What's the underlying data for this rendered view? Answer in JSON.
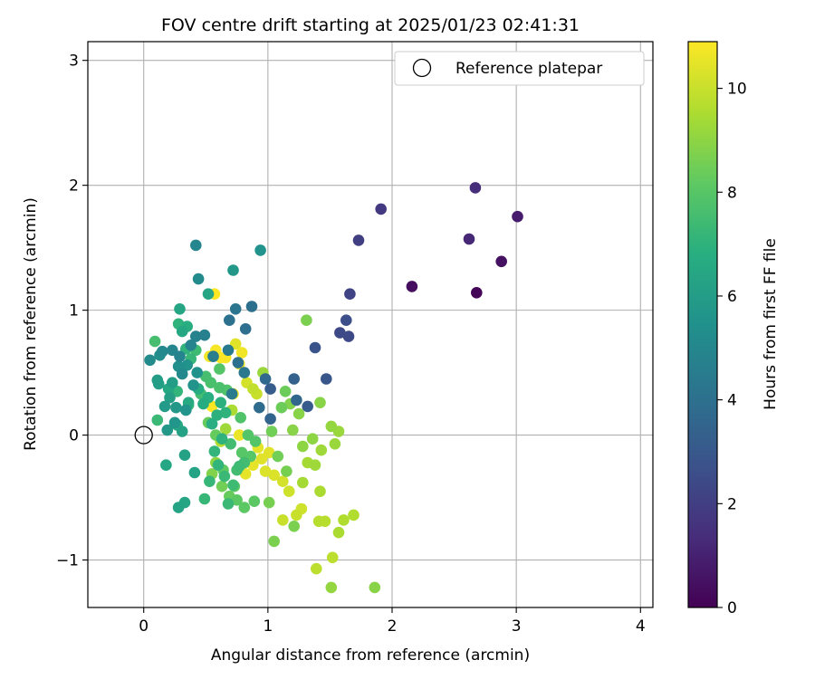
{
  "chart_data": {
    "type": "scatter",
    "title": "FOV centre drift starting at 2025/01/23 02:41:31",
    "xlabel": "Angular distance from reference (arcmin)",
    "ylabel": "Rotation from reference (arcmin)",
    "xlim": [
      -0.45,
      4.1
    ],
    "ylim": [
      -1.38,
      3.15
    ],
    "xticks": [
      0,
      1,
      2,
      3,
      4
    ],
    "xtick_labels": [
      "0",
      "1",
      "2",
      "3",
      "4"
    ],
    "yticks": [
      -1,
      0,
      1,
      2,
      3
    ],
    "ytick_labels": [
      "−1",
      "0",
      "1",
      "2",
      "3"
    ],
    "grid": true,
    "legend": {
      "position": "top-right",
      "label": "Reference platepar"
    },
    "reference_point": {
      "x": 0,
      "y": 0
    },
    "colorbar": {
      "label": "Hours from first FF file",
      "range": [
        0,
        10.9
      ],
      "ticks": [
        0,
        2,
        4,
        6,
        8,
        10
      ],
      "tick_labels": [
        "0",
        "2",
        "4",
        "6",
        "8",
        "10"
      ],
      "colormap": "viridis"
    },
    "points": [
      [
        2.68,
        1.14,
        0.1
      ],
      [
        2.16,
        1.19,
        0.4
      ],
      [
        2.88,
        1.39,
        0.5
      ],
      [
        3.01,
        1.75,
        0.8
      ],
      [
        2.62,
        1.57,
        1.2
      ],
      [
        2.67,
        1.98,
        1.4
      ],
      [
        1.91,
        1.81,
        1.8
      ],
      [
        1.73,
        1.56,
        2.0
      ],
      [
        1.66,
        1.13,
        2.2
      ],
      [
        1.58,
        0.82,
        2.4
      ],
      [
        1.65,
        0.79,
        2.4
      ],
      [
        1.63,
        0.92,
        2.6
      ],
      [
        1.38,
        0.7,
        2.8
      ],
      [
        1.47,
        0.45,
        2.9
      ],
      [
        1.32,
        0.23,
        3.1
      ],
      [
        1.02,
        0.37,
        3.2
      ],
      [
        1.21,
        0.45,
        3.4
      ],
      [
        1.23,
        0.28,
        3.6
      ],
      [
        1.02,
        0.13,
        3.5
      ],
      [
        0.98,
        0.45,
        3.7
      ],
      [
        0.93,
        0.22,
        3.8
      ],
      [
        0.82,
        0.85,
        3.9
      ],
      [
        0.87,
        1.03,
        4.0
      ],
      [
        0.69,
        0.92,
        4.1
      ],
      [
        0.76,
        0.58,
        4.0
      ],
      [
        0.74,
        1.01,
        4.2
      ],
      [
        0.81,
        0.5,
        4.3
      ],
      [
        0.68,
        0.68,
        4.4
      ],
      [
        0.71,
        0.33,
        4.5
      ],
      [
        0.56,
        0.63,
        4.6
      ],
      [
        0.49,
        0.8,
        4.7
      ],
      [
        0.42,
        0.79,
        4.8
      ],
      [
        0.38,
        0.72,
        4.9
      ],
      [
        0.29,
        0.63,
        4.9
      ],
      [
        0.23,
        0.68,
        5.0
      ],
      [
        0.31,
        0.49,
        5.1
      ],
      [
        0.15,
        0.67,
        5.1
      ],
      [
        0.05,
        0.6,
        5.2
      ],
      [
        0.13,
        0.64,
        5.3
      ],
      [
        0.28,
        0.55,
        5.4
      ],
      [
        0.35,
        0.56,
        5.5
      ],
      [
        0.43,
        0.5,
        5.5
      ],
      [
        0.4,
        0.4,
        5.6
      ],
      [
        0.34,
        0.2,
        5.6
      ],
      [
        0.25,
        0.1,
        5.7
      ],
      [
        0.26,
        0.22,
        5.8
      ],
      [
        0.19,
        0.04,
        5.8
      ],
      [
        0.17,
        0.23,
        5.9
      ],
      [
        0.23,
        0.42,
        6.0
      ],
      [
        0.11,
        0.44,
        6.0
      ],
      [
        0.12,
        0.41,
        6.1
      ],
      [
        0.21,
        0.3,
        6.1
      ],
      [
        0.31,
        0.03,
        6.2
      ],
      [
        0.33,
        -0.16,
        6.2
      ],
      [
        0.41,
        -0.3,
        6.3
      ],
      [
        0.28,
        -0.58,
        6.3
      ],
      [
        0.33,
        -0.54,
        6.4
      ],
      [
        0.18,
        -0.24,
        6.5
      ],
      [
        0.2,
        0.37,
        6.5
      ],
      [
        0.27,
        0.08,
        6.6
      ],
      [
        0.36,
        0.26,
        6.6
      ],
      [
        0.44,
        0.37,
        6.7
      ],
      [
        0.48,
        0.25,
        6.7
      ],
      [
        0.52,
        0.3,
        6.8
      ],
      [
        0.55,
        0.09,
        6.8
      ],
      [
        0.59,
        0.16,
        6.9
      ],
      [
        0.62,
        0.26,
        6.9
      ],
      [
        0.66,
        0.18,
        7.0
      ],
      [
        0.63,
        -0.03,
        7.0
      ],
      [
        0.57,
        -0.13,
        7.1
      ],
      [
        0.6,
        -0.24,
        7.1
      ],
      [
        0.53,
        -0.37,
        7.2
      ],
      [
        0.49,
        -0.51,
        7.2
      ],
      [
        0.65,
        -0.33,
        7.3
      ],
      [
        0.68,
        -0.55,
        7.3
      ],
      [
        0.72,
        -0.4,
        7.4
      ],
      [
        0.77,
        -0.25,
        7.4
      ],
      [
        0.81,
        -0.22,
        7.5
      ],
      [
        0.75,
        -0.28,
        7.5
      ],
      [
        0.7,
        -0.07,
        7.5
      ],
      [
        0.42,
        1.52,
        5.0
      ],
      [
        0.44,
        1.25,
        5.2
      ],
      [
        0.72,
        1.32,
        5.8
      ],
      [
        0.94,
        1.48,
        5.5
      ],
      [
        0.52,
        1.13,
        6.4
      ],
      [
        0.29,
        1.01,
        6.4
      ],
      [
        0.31,
        0.83,
        6.5
      ],
      [
        0.35,
        0.87,
        6.8
      ],
      [
        0.28,
        0.89,
        7.0
      ],
      [
        0.34,
        0.69,
        7.0
      ],
      [
        0.38,
        0.61,
        7.2
      ],
      [
        0.42,
        0.68,
        7.4
      ],
      [
        0.09,
        0.75,
        7.6
      ],
      [
        0.11,
        0.12,
        7.3
      ],
      [
        0.27,
        0.35,
        7.1
      ],
      [
        0.36,
        0.24,
        7.3
      ],
      [
        0.46,
        0.33,
        7.5
      ],
      [
        0.5,
        0.47,
        7.6
      ],
      [
        0.54,
        0.42,
        7.7
      ],
      [
        0.61,
        0.38,
        7.7
      ],
      [
        0.67,
        0.36,
        7.8
      ],
      [
        0.78,
        0.14,
        7.8
      ],
      [
        0.84,
        0.0,
        7.9
      ],
      [
        0.9,
        -0.05,
        7.9
      ],
      [
        0.86,
        -0.17,
        8.0
      ],
      [
        0.79,
        -0.14,
        8.0
      ],
      [
        0.81,
        -0.58,
        8.1
      ],
      [
        0.89,
        -0.53,
        8.1
      ],
      [
        0.73,
        -0.41,
        8.2
      ],
      [
        0.64,
        -0.28,
        8.2
      ],
      [
        0.58,
        0.0,
        8.3
      ],
      [
        0.52,
        0.1,
        8.3
      ],
      [
        1.14,
        0.35,
        8.4
      ],
      [
        1.11,
        0.22,
        8.4
      ],
      [
        1.03,
        0.03,
        8.5
      ],
      [
        1.08,
        -0.17,
        8.5
      ],
      [
        1.15,
        -0.29,
        8.6
      ],
      [
        1.01,
        -0.54,
        8.6
      ],
      [
        1.05,
        -0.85,
        8.7
      ],
      [
        1.21,
        -0.73,
        8.7
      ],
      [
        1.18,
        0.25,
        8.8
      ],
      [
        1.25,
        0.17,
        8.9
      ],
      [
        1.2,
        0.04,
        8.9
      ],
      [
        1.28,
        -0.09,
        9.0
      ],
      [
        1.36,
        -0.03,
        9.0
      ],
      [
        1.31,
        0.92,
        8.7
      ],
      [
        1.42,
        0.26,
        8.9
      ],
      [
        1.51,
        0.07,
        9.1
      ],
      [
        1.57,
        0.03,
        9.2
      ],
      [
        1.54,
        -0.07,
        9.2
      ],
      [
        1.43,
        -0.12,
        9.3
      ],
      [
        1.38,
        -0.24,
        9.3
      ],
      [
        1.32,
        -0.22,
        9.4
      ],
      [
        1.28,
        -0.38,
        9.4
      ],
      [
        1.42,
        -0.45,
        9.5
      ],
      [
        1.57,
        -0.78,
        9.5
      ],
      [
        1.61,
        -0.68,
        9.6
      ],
      [
        1.69,
        -0.64,
        9.6
      ],
      [
        1.41,
        -0.69,
        9.7
      ],
      [
        1.46,
        -0.69,
        9.7
      ],
      [
        1.52,
        -0.98,
        9.8
      ],
      [
        1.39,
        -1.07,
        9.8
      ],
      [
        1.51,
        -1.22,
        9.1
      ],
      [
        1.86,
        -1.22,
        8.9
      ],
      [
        1.12,
        -0.68,
        10.0
      ],
      [
        1.23,
        -0.64,
        10.0
      ],
      [
        1.27,
        -0.59,
        10.1
      ],
      [
        1.17,
        -0.45,
        10.1
      ],
      [
        1.12,
        -0.37,
        10.2
      ],
      [
        1.05,
        -0.32,
        10.3
      ],
      [
        0.98,
        -0.29,
        10.3
      ],
      [
        0.95,
        -0.19,
        10.4
      ],
      [
        1.01,
        -0.14,
        10.4
      ],
      [
        0.92,
        -0.1,
        10.5
      ],
      [
        0.88,
        -0.24,
        10.5
      ],
      [
        0.82,
        -0.31,
        10.5
      ],
      [
        0.77,
        0.0,
        10.6
      ],
      [
        0.72,
        0.33,
        10.6
      ],
      [
        0.83,
        0.42,
        10.2
      ],
      [
        0.88,
        0.37,
        9.9
      ],
      [
        0.91,
        0.33,
        10.0
      ],
      [
        0.96,
        0.5,
        9.2
      ],
      [
        0.77,
        0.57,
        10.6
      ],
      [
        0.79,
        0.66,
        10.7
      ],
      [
        0.74,
        0.73,
        10.4
      ],
      [
        0.58,
        0.68,
        10.8
      ],
      [
        0.62,
        0.62,
        10.9
      ],
      [
        0.66,
        0.62,
        10.8
      ],
      [
        0.53,
        0.63,
        10.7
      ],
      [
        0.57,
        1.13,
        10.9
      ],
      [
        0.55,
        0.23,
        10.9
      ],
      [
        0.71,
        0.2,
        9.5
      ],
      [
        0.66,
        0.05,
        9.3
      ],
      [
        0.62,
        -0.05,
        9.6
      ],
      [
        0.58,
        -0.22,
        9.0
      ],
      [
        0.55,
        -0.31,
        8.8
      ],
      [
        0.63,
        -0.41,
        8.5
      ],
      [
        0.69,
        -0.49,
        8.3
      ],
      [
        0.75,
        -0.52,
        8.1
      ],
      [
        0.61,
        0.53,
        7.9
      ]
    ]
  }
}
